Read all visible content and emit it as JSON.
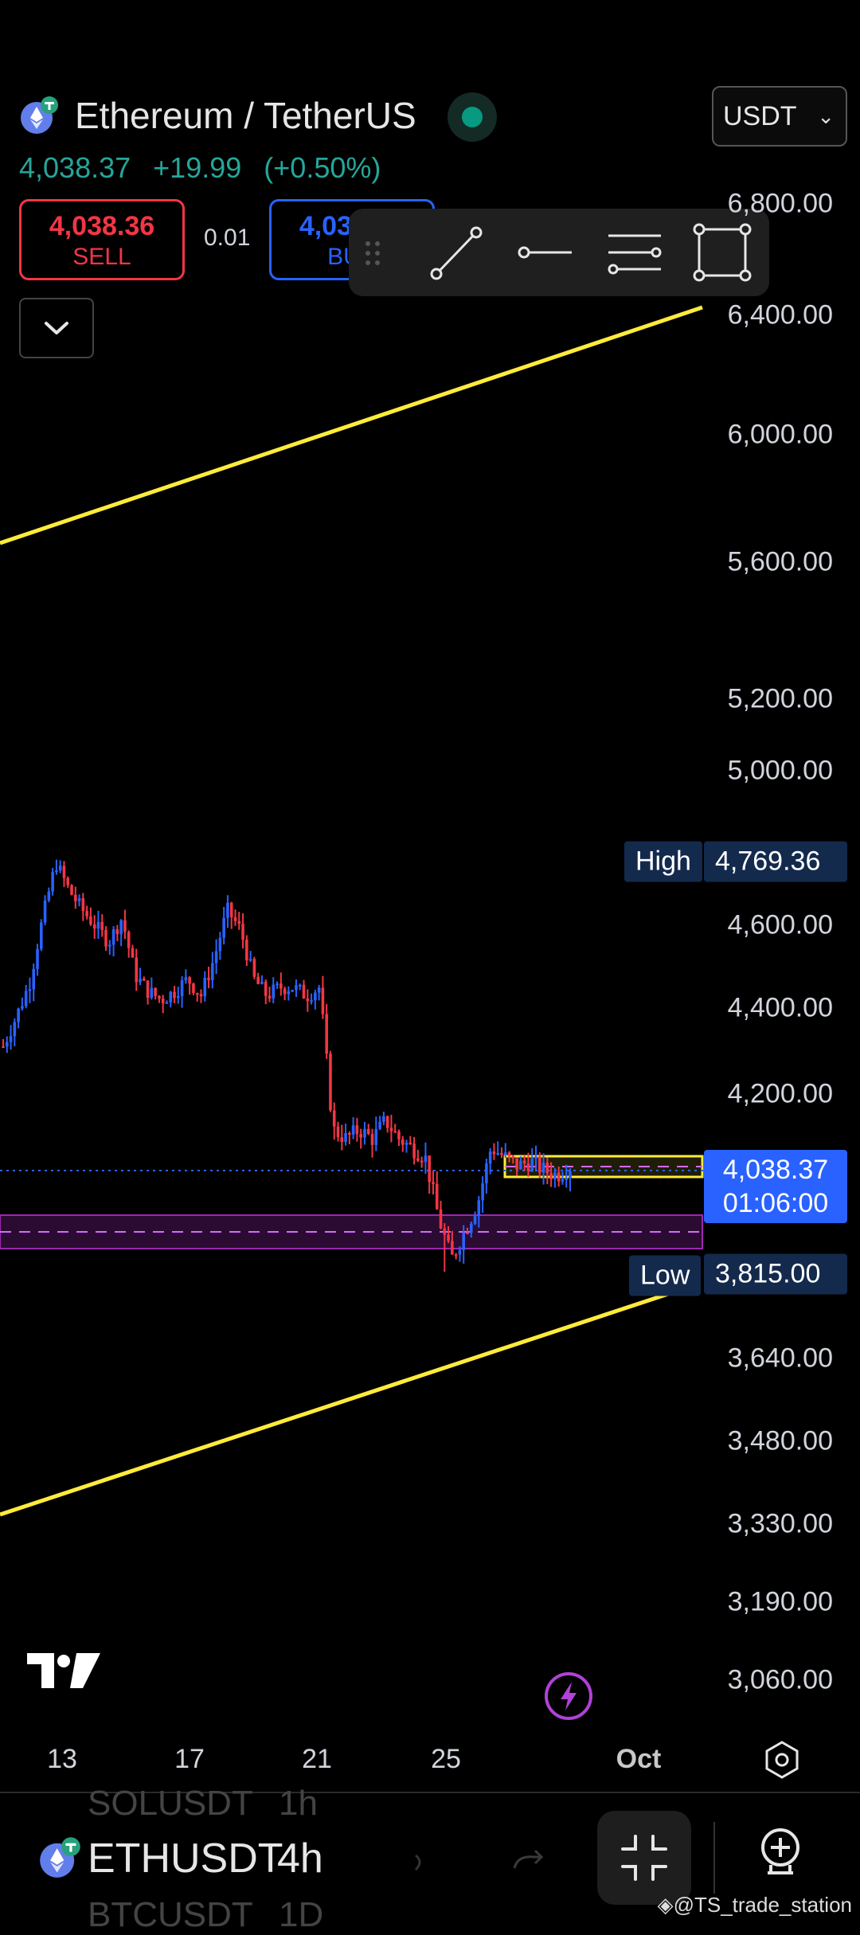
{
  "header": {
    "title": "Ethereum / TetherUS",
    "currency": "USDT",
    "last_price": "4,038.37",
    "change": "+19.99",
    "change_pct": "(+0.50%)"
  },
  "trade": {
    "sell_price": "4,038.36",
    "sell_label": "SELL",
    "spread": "0.01",
    "buy_price": "4,038.37",
    "buy_label": "BUY"
  },
  "price_axis": {
    "labels": [
      "6,800.00",
      "6,400.00",
      "6,000.00",
      "5,600.00",
      "5,200.00",
      "5,000.00",
      "4,600.00",
      "4,400.00",
      "4,200.00",
      "3,640.00",
      "3,480.00",
      "3,330.00",
      "3,190.00",
      "3,060.00"
    ]
  },
  "tags": {
    "high_label": "High",
    "high_value": "4,769.36",
    "low_label": "Low",
    "low_value": "3,815.00",
    "current_price": "4,038.37",
    "countdown": "01:06:00"
  },
  "time_axis": {
    "labels": [
      "13",
      "17",
      "21",
      "25",
      "Oct"
    ]
  },
  "bottom_bar": {
    "symbol": "ETHUSDT",
    "interval": "4h",
    "prev_symbol": "SOLUSDT",
    "prev_interval": "1h",
    "next_symbol": "BTCUSDT",
    "next_interval": "1D",
    "credit": "@TS_trade_station"
  },
  "colors": {
    "up": "#2962ff",
    "down": "#f23645",
    "channel": "#ffeb3b",
    "zone": "#9c27b0",
    "accent": "#2962ff",
    "positive": "#26a69a"
  },
  "icons": [
    "ethereum-icon",
    "trend-line-icon",
    "horizontal-ray-icon",
    "parallel-channel-icon",
    "rectangle-icon",
    "chevron-down-icon",
    "drag-handle-icon",
    "lightning-icon",
    "settings-icon",
    "tradingview-logo",
    "collapse-icon",
    "add-alert-icon"
  ],
  "chart_data": {
    "type": "candlestick",
    "title": "",
    "xlabel": "",
    "ylabel": "",
    "x_tick_labels": [
      "13",
      "17",
      "21",
      "25",
      "Oct"
    ],
    "y_tick_labels": [
      "6,800.00",
      "6,400.00",
      "6,000.00",
      "5,600.00",
      "5,200.00",
      "5,000.00",
      "4,600.00",
      "4,400.00",
      "4,200.00",
      "3,640.00",
      "3,480.00",
      "3,330.00",
      "3,190.00",
      "3,060.00"
    ],
    "ylim": [
      3000,
      7000
    ],
    "y_scale": "log",
    "close_path": [
      4310,
      4380,
      4460,
      4620,
      4760,
      4690,
      4640,
      4600,
      4560,
      4620,
      4480,
      4440,
      4420,
      4440,
      4470,
      4430,
      4520,
      4640,
      4590,
      4470,
      4430,
      4450,
      4450,
      4430,
      4450,
      4120,
      4100,
      4120,
      4100,
      4140,
      4100,
      4080,
      4060,
      3930,
      3840,
      3900,
      3960,
      4080,
      4060,
      4040,
      4050,
      4030,
      4020,
      4038
    ],
    "session_high": 4769.36,
    "session_low": 3815.0,
    "last": 4038.37,
    "overlays": [
      {
        "kind": "channel-upper",
        "color": "#ffeb3b"
      },
      {
        "kind": "channel-lower",
        "color": "#ffeb3b"
      },
      {
        "kind": "zone",
        "from": 3890,
        "to": 3950,
        "color": "#9c27b0"
      },
      {
        "kind": "zone",
        "from": 4065,
        "to": 4095,
        "color": "#ffeb3b"
      }
    ]
  }
}
